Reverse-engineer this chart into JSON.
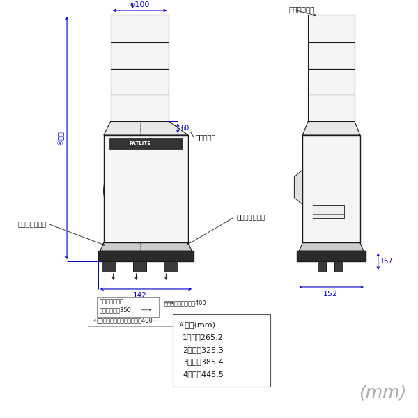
{
  "bg_color": "#ffffff",
  "line_color": "#1a1a1a",
  "dim_color": "#0000cc",
  "text_color": "#1a1a1a",
  "title_phi": "φ100",
  "label_60": "60",
  "label_tsumami": "つまみねじ",
  "label_onsin": "音信号線（黒）",
  "label_kosin": "光信号線（灰）",
  "label_142": "142",
  "label_singocode_1": "信号線：コード",
  "label_singocode_2": "取出し口より350",
  "label_code400": "コード取出し口より400",
  "label_dengen": "電源線：コード取出し口より400",
  "label_shaft": "シャフトねじ",
  "label_167": "167",
  "label_152": "152",
  "label_takasa": "※高さ",
  "label_height_title": "※高さ(mm)",
  "height_rows": [
    "1段式：265.2",
    "2段式：325.3",
    "3段式：385.4",
    "4段式：445.5"
  ],
  "label_mm": "(mm)",
  "label_patlite": "PATLITE"
}
